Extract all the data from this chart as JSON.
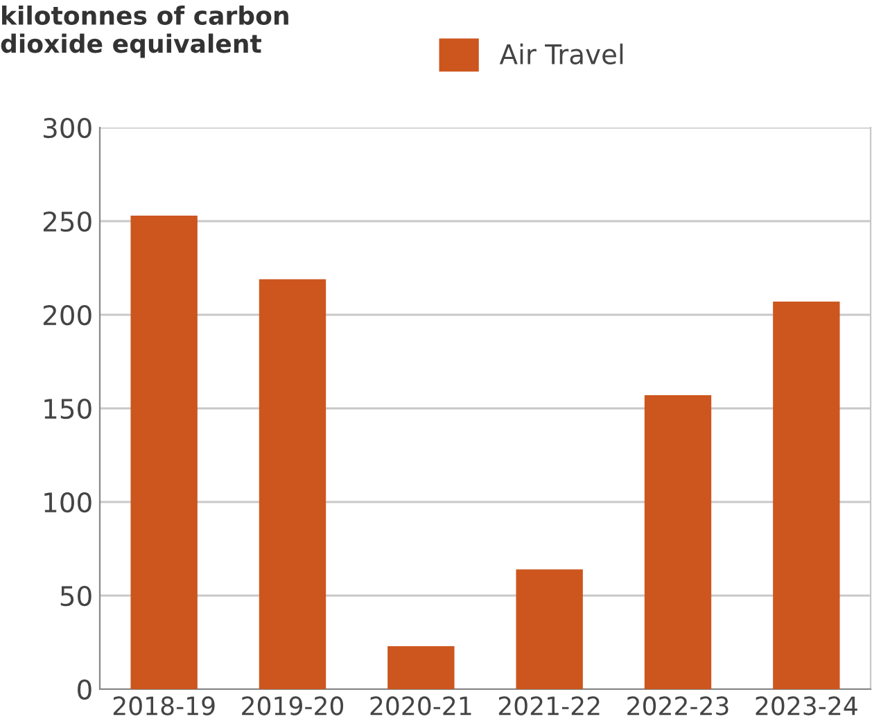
{
  "chart_data": {
    "type": "bar",
    "ylabel": "kilotonnes of carbon\ndioxide equivalent",
    "categories": [
      "2018-19",
      "2019-20",
      "2020-21",
      "2021-22",
      "2022-23",
      "2023-24"
    ],
    "series": [
      {
        "name": "Air Travel",
        "color": "#cc561e",
        "values": [
          253,
          219,
          23,
          64,
          157,
          207
        ]
      }
    ],
    "ylim": [
      0,
      300
    ],
    "yticks": [
      0,
      50,
      100,
      150,
      200,
      250,
      300
    ],
    "grid": "y",
    "legend": "top"
  }
}
